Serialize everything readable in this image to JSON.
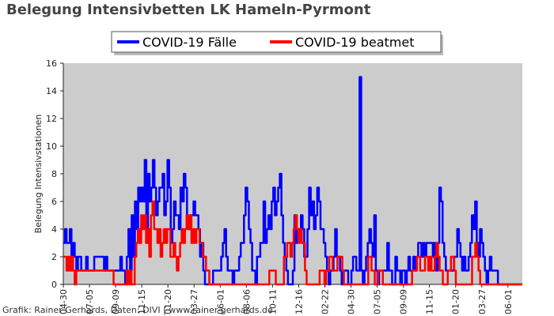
{
  "title": "Belegung Intensivbetten LK Hameln-Pyrmont",
  "credit": "Grafik: Rainer Gerhards, Daten: DIVI | www.rainer-gerhards.de",
  "colors": {
    "plot_background": "#cccccc",
    "series_faelle": "#0000ff",
    "series_beatmet": "#ff0000",
    "title": "#444444"
  },
  "chart_data": {
    "type": "line",
    "title": "Belegung Intensivbetten LK Hameln-Pyrmont",
    "ylabel": "Belegung Intensivstationen",
    "xlabel": "",
    "ylim": [
      0,
      16
    ],
    "yticks": [
      0,
      2,
      4,
      6,
      8,
      10,
      12,
      14,
      16
    ],
    "grid": false,
    "legend_position": "top-center",
    "x_tick_labels": [
      "04-30",
      "07-05",
      "09-09",
      "11-15",
      "01-20",
      "03-27",
      "06-01",
      "08-06",
      "10-11",
      "12-16",
      "02-22",
      "04-30",
      "07-05",
      "09-09",
      "11-15",
      "01-20",
      "03-27",
      "06-01"
    ],
    "legend": [
      "COVID-19 Fälle",
      "COVID-19 beatmet"
    ],
    "series": [
      {
        "name": "COVID-19 Fälle",
        "color": "#0000ff",
        "values": [
          3,
          4,
          3,
          3,
          4,
          2,
          3,
          2,
          1,
          2,
          2,
          1,
          1,
          1,
          2,
          1,
          1,
          1,
          1,
          2,
          2,
          2,
          2,
          2,
          2,
          1,
          2,
          1,
          1,
          1,
          1,
          1,
          1,
          1,
          1,
          2,
          1,
          1,
          0,
          2,
          4,
          1,
          5,
          2,
          6,
          4,
          7,
          6,
          7,
          6,
          9,
          4,
          8,
          6,
          7,
          9,
          7,
          5,
          6,
          7,
          7,
          8,
          5,
          6,
          9,
          7,
          3,
          4,
          6,
          5,
          5,
          4,
          7,
          6,
          8,
          7,
          5,
          4,
          5,
          5,
          6,
          5,
          5,
          4,
          2,
          3,
          1,
          0,
          0,
          0,
          0,
          0,
          1,
          1,
          1,
          1,
          1,
          2,
          3,
          4,
          2,
          1,
          1,
          1,
          0,
          1,
          1,
          1,
          2,
          3,
          3,
          5,
          7,
          6,
          4,
          3,
          1,
          1,
          0,
          2,
          2,
          3,
          3,
          6,
          3,
          4,
          5,
          4,
          6,
          7,
          5,
          6,
          7,
          8,
          5,
          3,
          2,
          1,
          0,
          0,
          0,
          1,
          5,
          3,
          4,
          4,
          5,
          4,
          2,
          2,
          4,
          7,
          5,
          6,
          4,
          5,
          7,
          6,
          4,
          4,
          3,
          2,
          1,
          0,
          1,
          1,
          2,
          4,
          2,
          2,
          1,
          0,
          1,
          1,
          1,
          0,
          0,
          1,
          2,
          2,
          1,
          1,
          15,
          1,
          0,
          1,
          2,
          3,
          4,
          3,
          2,
          5,
          1,
          0,
          1,
          1,
          1,
          1,
          1,
          3,
          1,
          1,
          0,
          0,
          2,
          1,
          1,
          0,
          1,
          1,
          0,
          1,
          2,
          1,
          1,
          2,
          1,
          2,
          3,
          3,
          2,
          3,
          2,
          3,
          3,
          3,
          3,
          2,
          3,
          1,
          3,
          7,
          6,
          3,
          2,
          1,
          1,
          1,
          1,
          1,
          2,
          2,
          4,
          3,
          2,
          1,
          2,
          1,
          1,
          2,
          3,
          5,
          4,
          6,
          3,
          2,
          4,
          3,
          2,
          1,
          0,
          1,
          2,
          1,
          1,
          1,
          1,
          0,
          0,
          0,
          0,
          0,
          0,
          0,
          0,
          0,
          0,
          0,
          0,
          0,
          0,
          0
        ]
      },
      {
        "name": "COVID-19 beatmet",
        "color": "#ff0000",
        "values": [
          2,
          2,
          1,
          2,
          1,
          2,
          1,
          0,
          1,
          1,
          1,
          1,
          1,
          1,
          1,
          1,
          1,
          1,
          1,
          1,
          1,
          1,
          1,
          1,
          1,
          1,
          1,
          1,
          1,
          1,
          1,
          0,
          0,
          0,
          0,
          0,
          0,
          0,
          0,
          1,
          0,
          1,
          0,
          0,
          2,
          3,
          4,
          3,
          5,
          4,
          5,
          3,
          4,
          2,
          5,
          6,
          4,
          4,
          3,
          4,
          2,
          3,
          4,
          3,
          4,
          4,
          2,
          2,
          3,
          2,
          1,
          2,
          3,
          4,
          3,
          4,
          5,
          4,
          5,
          3,
          4,
          3,
          4,
          4,
          3,
          3,
          2,
          2,
          1,
          1,
          0,
          0,
          0,
          0,
          0,
          0,
          0,
          0,
          0,
          0,
          0,
          0,
          0,
          0,
          0,
          0,
          0,
          0,
          0,
          0,
          0,
          0,
          0,
          0,
          0,
          0,
          0,
          0,
          0,
          0,
          0,
          0,
          0,
          0,
          0,
          0,
          0,
          1,
          1,
          1,
          1,
          0,
          0,
          0,
          0,
          0,
          2,
          2,
          3,
          3,
          2,
          3,
          4,
          5,
          4,
          3,
          4,
          3,
          3,
          1,
          0,
          0,
          0,
          0,
          0,
          0,
          0,
          0,
          1,
          1,
          1,
          0,
          1,
          1,
          2,
          2,
          1,
          1,
          1,
          2,
          2,
          2,
          1,
          0,
          0,
          0,
          0,
          0,
          0,
          0,
          0,
          0,
          0,
          0,
          0,
          0,
          0,
          0,
          2,
          2,
          1,
          1,
          0,
          0,
          1,
          1,
          1,
          0,
          0,
          0,
          0,
          0,
          0,
          0,
          0,
          0,
          0,
          0,
          0,
          0,
          0,
          0,
          0,
          0,
          0,
          1,
          1,
          1,
          2,
          2,
          1,
          1,
          1,
          2,
          2,
          1,
          2,
          1,
          1,
          2,
          3,
          2,
          1,
          1,
          0,
          0,
          0,
          1,
          1,
          2,
          2,
          1,
          0,
          0,
          0,
          0,
          0,
          0,
          0,
          0,
          0,
          0,
          2,
          2,
          3,
          2,
          1,
          0,
          0,
          0,
          0,
          0,
          0,
          0,
          0,
          0,
          0,
          0,
          0,
          0,
          0,
          0,
          0,
          0,
          0,
          0,
          0,
          0,
          0,
          0,
          0,
          0,
          0
        ]
      }
    ]
  }
}
